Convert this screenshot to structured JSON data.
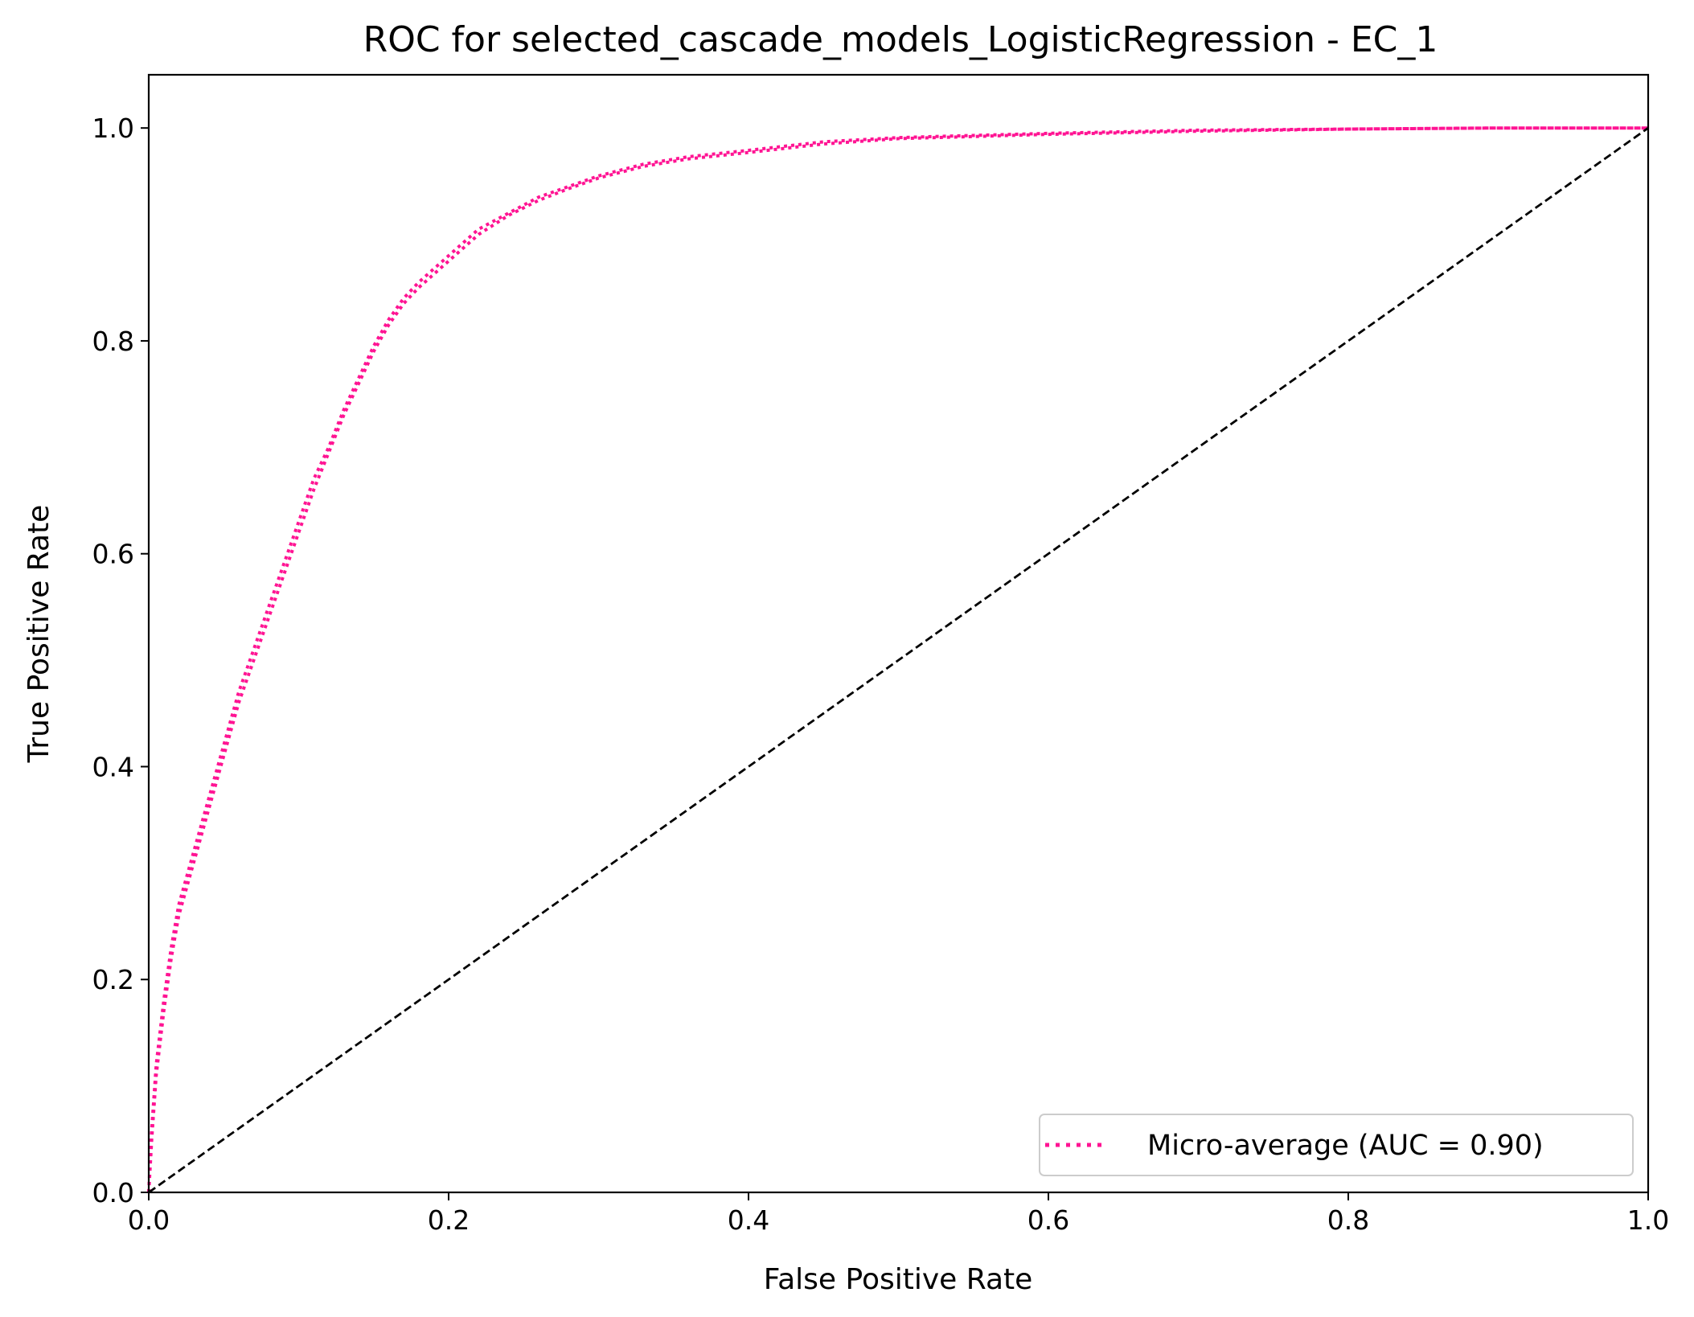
{
  "chart_data": {
    "type": "line",
    "title": "ROC for selected_cascade_models_LogisticRegression - EC_1",
    "xlabel": "False Positive Rate",
    "ylabel": "True Positive Rate",
    "xlim": [
      0.0,
      1.0
    ],
    "ylim": [
      0.0,
      1.05
    ],
    "x_ticks": [
      "0.0",
      "0.2",
      "0.4",
      "0.6",
      "0.8",
      "1.0"
    ],
    "y_ticks": [
      "0.0",
      "0.2",
      "0.4",
      "0.6",
      "0.8",
      "1.0"
    ],
    "grid": false,
    "legend_position": "lower right",
    "series": [
      {
        "name": "Micro-average (AUC = 0.90)",
        "color": "#ff1493",
        "style": "dotted",
        "x": [
          0.0,
          0.002,
          0.005,
          0.01,
          0.015,
          0.02,
          0.03,
          0.04,
          0.05,
          0.06,
          0.07,
          0.08,
          0.09,
          0.1,
          0.11,
          0.12,
          0.13,
          0.14,
          0.15,
          0.16,
          0.17,
          0.18,
          0.2,
          0.22,
          0.24,
          0.26,
          0.28,
          0.3,
          0.33,
          0.36,
          0.4,
          0.45,
          0.5,
          0.55,
          0.6,
          0.7,
          0.8,
          0.9,
          1.0
        ],
        "y": [
          0.0,
          0.06,
          0.12,
          0.18,
          0.23,
          0.27,
          0.32,
          0.37,
          0.42,
          0.47,
          0.51,
          0.55,
          0.59,
          0.63,
          0.67,
          0.7,
          0.735,
          0.765,
          0.795,
          0.82,
          0.84,
          0.855,
          0.88,
          0.905,
          0.92,
          0.935,
          0.945,
          0.955,
          0.966,
          0.973,
          0.979,
          0.987,
          0.991,
          0.993,
          0.995,
          0.998,
          0.999,
          1.0,
          1.0
        ]
      },
      {
        "name": "",
        "color": "#ff1493",
        "style": "dotted",
        "x": [
          0.0,
          0.002,
          0.005,
          0.01,
          0.015,
          0.02,
          0.03,
          0.04,
          0.05,
          0.06,
          0.07,
          0.08,
          0.09,
          0.1,
          0.11,
          0.12,
          0.13,
          0.14,
          0.15,
          0.16,
          0.17,
          0.18,
          0.2,
          0.22,
          0.24,
          0.26,
          0.28,
          0.3,
          0.33,
          0.36,
          0.4,
          0.45,
          0.5,
          0.55,
          0.6,
          0.7,
          0.8,
          0.9,
          1.0
        ],
        "y": [
          0.0,
          0.05,
          0.11,
          0.17,
          0.22,
          0.26,
          0.31,
          0.36,
          0.41,
          0.46,
          0.5,
          0.54,
          0.58,
          0.62,
          0.66,
          0.695,
          0.73,
          0.76,
          0.79,
          0.815,
          0.835,
          0.85,
          0.875,
          0.9,
          0.918,
          0.932,
          0.943,
          0.953,
          0.964,
          0.971,
          0.977,
          0.985,
          0.99,
          0.992,
          0.994,
          0.997,
          0.999,
          1.0,
          1.0
        ]
      },
      {
        "name": "",
        "color": "#000000",
        "style": "dashed",
        "x": [
          0.0,
          1.0
        ],
        "y": [
          0.0,
          1.0
        ]
      }
    ]
  }
}
